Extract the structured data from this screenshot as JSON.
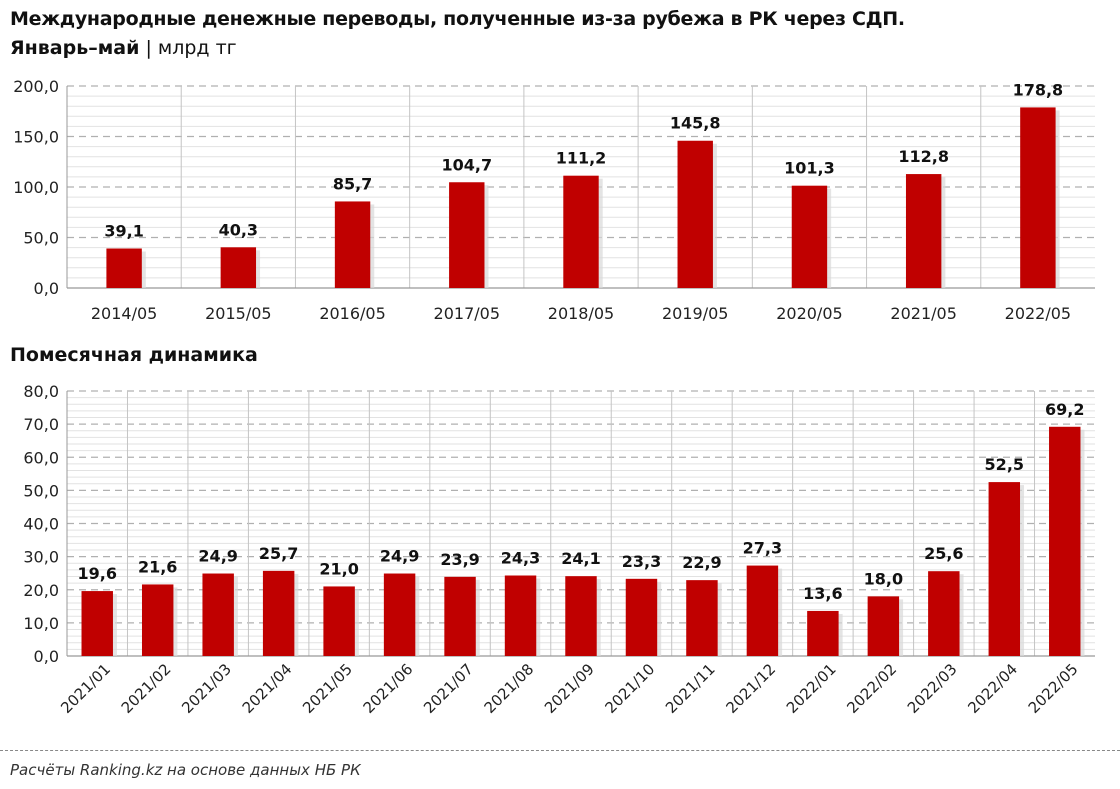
{
  "title": "Международные денежные переводы, полученные из-за рубежа в РК через СДП.",
  "subtitle_period": "Январь–май",
  "subtitle_sep": "|",
  "subtitle_unit": "млрд тг",
  "footnote": "Расчёты Ranking.kz на основе данных НБ РК",
  "colors": {
    "bar": "#c00000",
    "grid_major": "#b0b0b0",
    "grid_minor": "#e2e2e2"
  },
  "chart_data": [
    {
      "type": "bar",
      "title": "",
      "categories": [
        "2014/05",
        "2015/05",
        "2016/05",
        "2017/05",
        "2018/05",
        "2019/05",
        "2020/05",
        "2021/05",
        "2022/05"
      ],
      "values": [
        39.1,
        40.3,
        85.7,
        104.7,
        111.2,
        145.8,
        101.3,
        112.8,
        178.8
      ],
      "data_labels": [
        "39,1",
        "40,3",
        "85,7",
        "104,7",
        "111,2",
        "145,8",
        "101,3",
        "112,8",
        "178,8"
      ],
      "ylim": [
        0,
        200
      ],
      "yticks": [
        "0,0",
        "50,0",
        "100,0",
        "150,0",
        "200,0"
      ],
      "grid": true
    },
    {
      "type": "bar",
      "title": "Помесячная динамика",
      "categories": [
        "2021/01",
        "2021/02",
        "2021/03",
        "2021/04",
        "2021/05",
        "2021/06",
        "2021/07",
        "2021/08",
        "2021/09",
        "2021/10",
        "2021/11",
        "2021/12",
        "2022/01",
        "2022/02",
        "2022/03",
        "2022/04",
        "2022/05"
      ],
      "values": [
        19.6,
        21.6,
        24.9,
        25.7,
        21.0,
        24.9,
        23.9,
        24.3,
        24.1,
        23.3,
        22.9,
        27.3,
        13.6,
        18.0,
        25.6,
        52.5,
        69.2
      ],
      "data_labels": [
        "19,6",
        "21,6",
        "24,9",
        "25,7",
        "21,0",
        "24,9",
        "23,9",
        "24,3",
        "24,1",
        "23,3",
        "22,9",
        "27,3",
        "13,6",
        "18,0",
        "25,6",
        "52,5",
        "69,2"
      ],
      "ylim": [
        0,
        80
      ],
      "yticks": [
        "0,0",
        "10,0",
        "20,0",
        "30,0",
        "40,0",
        "50,0",
        "60,0",
        "70,0",
        "80,0"
      ],
      "grid": true
    }
  ]
}
